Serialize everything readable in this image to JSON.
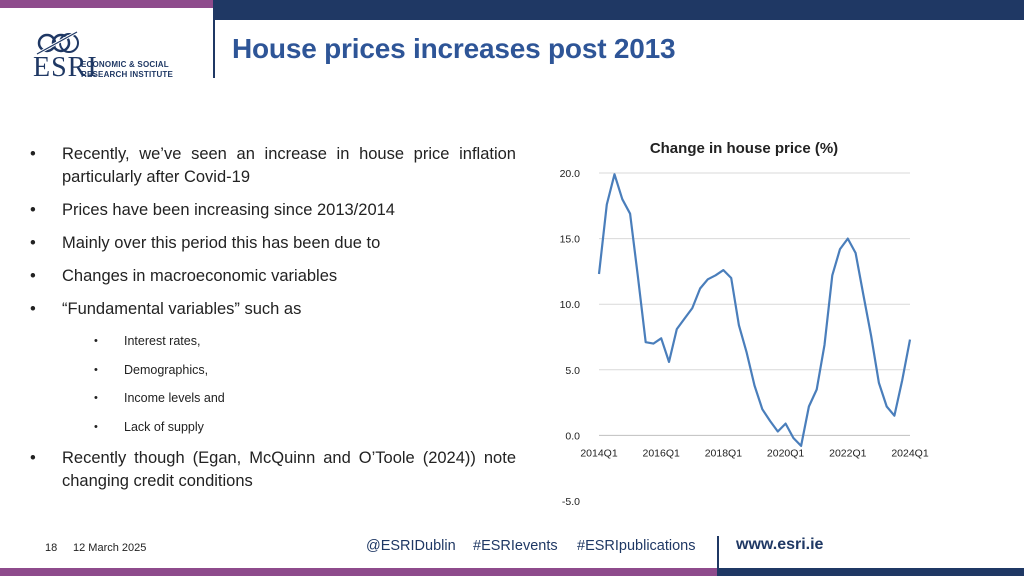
{
  "header": {
    "title": "House prices increases post 2013",
    "logo": {
      "brand": "ESRI",
      "line1": "ECONOMIC & SOCIAL",
      "line2": "RESEARCH INSTITUTE"
    }
  },
  "bullets": {
    "b1": "Recently, we’ve seen an increase in house price inflation particularly after Covid-19",
    "b2": "Prices have been increasing since 2013/2014",
    "b3": "Mainly over this period this has been due to",
    "b4": "Changes in macroeconomic variables",
    "b5": "“Fundamental variables” such as",
    "sub1": "Interest rates,",
    "sub2": "Demographics,",
    "sub3": "Income levels and",
    "sub4": "Lack of supply",
    "b6": "Recently though (Egan, McQuinn and O’Toole (2024)) note changing credit conditions",
    "marker": "•"
  },
  "chart_data": {
    "type": "line",
    "title": "Change in house price (%)",
    "xlabel": "",
    "ylabel": "",
    "ylim": [
      -5,
      20
    ],
    "yticks": [
      "20.0",
      "15.0",
      "10.0",
      "5.0",
      "0.0",
      "-5.0"
    ],
    "xticks": [
      "2014Q1",
      "2016Q1",
      "2018Q1",
      "2020Q1",
      "2022Q1",
      "2024Q1"
    ],
    "grid": true,
    "line_color": "#4a7ebb",
    "x": [
      "2014Q1",
      "2014Q2",
      "2014Q3",
      "2014Q4",
      "2015Q1",
      "2015Q2",
      "2015Q3",
      "2015Q4",
      "2016Q1",
      "2016Q2",
      "2016Q3",
      "2016Q4",
      "2017Q1",
      "2017Q2",
      "2017Q3",
      "2017Q4",
      "2018Q1",
      "2018Q2",
      "2018Q3",
      "2018Q4",
      "2019Q1",
      "2019Q2",
      "2019Q3",
      "2019Q4",
      "2020Q1",
      "2020Q2",
      "2020Q3",
      "2020Q4",
      "2021Q1",
      "2021Q2",
      "2021Q3",
      "2021Q4",
      "2022Q1",
      "2022Q2",
      "2022Q3",
      "2022Q4",
      "2023Q1",
      "2023Q2",
      "2023Q3",
      "2023Q4",
      "2024Q1"
    ],
    "values": [
      12.3,
      17.6,
      19.9,
      18.0,
      16.9,
      12.1,
      7.1,
      7.0,
      7.4,
      5.6,
      8.1,
      8.9,
      9.7,
      11.2,
      11.9,
      12.2,
      12.6,
      12.0,
      8.4,
      6.3,
      3.8,
      2.0,
      1.1,
      0.3,
      0.9,
      -0.2,
      -0.8,
      2.2,
      3.5,
      6.9,
      12.2,
      14.2,
      15.0,
      13.9,
      10.7,
      7.6,
      4.0,
      2.2,
      1.5,
      4.2,
      7.3
    ]
  },
  "footer": {
    "slide_number": "18",
    "date": "12 March 2025",
    "social1": "@ESRIDublin",
    "social2": "#ESRIevents",
    "social3": "#ESRIpublications",
    "website": "www.esri.ie"
  },
  "colors": {
    "navy": "#1f3864",
    "purple": "#8e4b8c",
    "title_blue": "#2e5597"
  }
}
